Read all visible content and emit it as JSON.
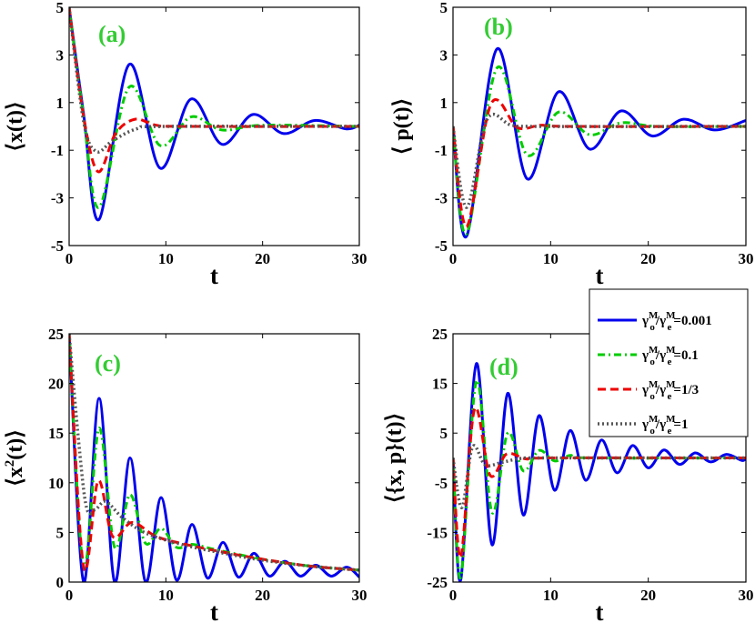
{
  "chart_data": [
    {
      "id": "a",
      "type": "line",
      "panel_label": "(a)",
      "xlabel": "t",
      "ylabel": "⟨x(t)⟩",
      "xlim": [
        0,
        30
      ],
      "ylim": [
        -5,
        5
      ],
      "xticks": [
        0,
        10,
        20,
        30
      ],
      "yticks": [
        -5,
        -3,
        -1,
        1,
        3,
        5
      ],
      "ytick_labels": [
        "-5",
        "-3",
        "-1",
        "1",
        "3",
        "5"
      ],
      "series": [
        {
          "name": "γoM/γeM=0.001",
          "x": [
            0,
            1.5,
            3.1,
            6.2,
            9.4,
            12.6,
            15.8,
            19.0,
            22.2,
            25.4,
            28.6,
            30
          ],
          "y": [
            5,
            0.5,
            -3.9,
            2.6,
            -1.75,
            1.15,
            -0.75,
            0.5,
            -0.3,
            0.25,
            -0.1,
            0.05
          ]
        },
        {
          "name": "γoM/γeM=0.1",
          "x": [
            0,
            1.5,
            3.1,
            6.2,
            9.4,
            12.6,
            15.8,
            20,
            30
          ],
          "y": [
            5,
            0.4,
            -3.4,
            1.65,
            -0.8,
            0.4,
            -0.15,
            0.05,
            0
          ]
        },
        {
          "name": "γoM/γeM=1/3",
          "x": [
            0,
            1.5,
            3.0,
            4.8,
            6.8,
            9,
            12,
            30
          ],
          "y": [
            5,
            0.4,
            -1.9,
            -0.3,
            0.3,
            0.05,
            0,
            0
          ]
        },
        {
          "name": "γoM/γeM=1",
          "x": [
            0,
            1.5,
            2.8,
            4.5,
            7,
            10,
            30
          ],
          "y": [
            5,
            0.2,
            -1.05,
            -0.6,
            -0.1,
            0,
            0
          ]
        }
      ]
    },
    {
      "id": "b",
      "type": "line",
      "panel_label": "(b)",
      "xlabel": "t",
      "ylabel": "⟨ p(t)⟩",
      "xlim": [
        0,
        30
      ],
      "ylim": [
        -5,
        5
      ],
      "xticks": [
        0,
        10,
        20,
        30
      ],
      "yticks": [
        -5,
        -3,
        -1,
        1,
        3,
        5
      ],
      "ytick_labels": [
        "-5",
        "-3",
        "-1",
        "1",
        "3",
        "5"
      ],
      "series": [
        {
          "name": "γoM/γeM=0.001",
          "x": [
            0,
            1.4,
            4.5,
            7.6,
            10.8,
            14.0,
            17.2,
            20.4,
            23.6,
            26.8,
            30
          ],
          "y": [
            0,
            -4.6,
            3.25,
            -2.2,
            1.45,
            -0.95,
            0.65,
            -0.4,
            0.3,
            -0.15,
            0.25
          ]
        },
        {
          "name": "γoM/γeM=0.1",
          "x": [
            0,
            1.4,
            4.5,
            7.6,
            10.8,
            14.0,
            17.2,
            21,
            30
          ],
          "y": [
            0,
            -4.5,
            2.45,
            -1.2,
            0.6,
            -0.35,
            0.15,
            0,
            0
          ]
        },
        {
          "name": "γoM/γeM=1/3",
          "x": [
            0,
            1.4,
            3.9,
            6.6,
            9,
            12,
            30
          ],
          "y": [
            0,
            -4.2,
            0.95,
            -0.05,
            0.05,
            0,
            0
          ]
        },
        {
          "name": "γoM/γeM=1",
          "x": [
            0,
            1.4,
            3.5,
            6,
            9,
            30
          ],
          "y": [
            0,
            -3.4,
            0.3,
            0.05,
            0,
            0
          ]
        }
      ]
    },
    {
      "id": "c",
      "type": "line",
      "panel_label": "(c)",
      "xlabel": "t",
      "ylabel": "⟨x²(t)⟩",
      "xlim": [
        0,
        30
      ],
      "ylim": [
        0,
        25
      ],
      "xticks": [
        0,
        10,
        20,
        30
      ],
      "yticks": [
        0,
        5,
        10,
        15,
        20,
        25
      ],
      "ytick_labels": [
        "0",
        "5",
        "10",
        "15",
        "20",
        "25"
      ],
      "series": [
        {
          "name": "γoM/γeM=0.001",
          "x": [
            0,
            1.5,
            3.1,
            4.7,
            6.3,
            7.9,
            9.5,
            11.1,
            12.7,
            14.3,
            15.9,
            17.5,
            19.1,
            20.7,
            22.3,
            23.9,
            25.5,
            27.1,
            28.7,
            30
          ],
          "y": [
            25,
            0,
            18.5,
            0,
            12.5,
            0,
            8.5,
            0.2,
            5.8,
            0.4,
            4.0,
            0.5,
            2.9,
            0.6,
            2.1,
            0.6,
            1.7,
            0.6,
            1.5,
            0.5
          ]
        },
        {
          "name": "γoM/γeM=0.1",
          "x": [
            0,
            1.5,
            3.1,
            4.7,
            6.3,
            7.9,
            9.5,
            11.1,
            12.7,
            15,
            20,
            25,
            30
          ],
          "y": [
            25,
            1.5,
            15.5,
            3.5,
            8.8,
            3.9,
            5.4,
            3.5,
            3.8,
            3.3,
            2.3,
            1.6,
            1.2
          ]
        },
        {
          "name": "γoM/γeM=1/3",
          "x": [
            0,
            1.5,
            3.0,
            4.5,
            6.5,
            9,
            12,
            16,
            20,
            25,
            30
          ],
          "y": [
            25,
            1.5,
            10.2,
            4.6,
            6.0,
            4.6,
            3.8,
            3.0,
            2.3,
            1.6,
            1.2
          ]
        },
        {
          "name": "γoM/γeM=1",
          "x": [
            0,
            1,
            1.8,
            2.7,
            3.8,
            5.5,
            8,
            12,
            16,
            20,
            25,
            30
          ],
          "y": [
            25,
            14,
            7.5,
            7.3,
            8.1,
            6.5,
            4.9,
            3.7,
            2.9,
            2.2,
            1.6,
            1.2
          ]
        }
      ]
    },
    {
      "id": "d",
      "type": "line",
      "panel_label": "(d)",
      "xlabel": "t",
      "ylabel": "⟨{x, p}(t)⟩",
      "xlim": [
        0,
        30
      ],
      "ylim": [
        -25,
        25
      ],
      "xticks": [
        0,
        10,
        20,
        30
      ],
      "yticks": [
        -25,
        -15,
        -5,
        5,
        15,
        25
      ],
      "ytick_labels": [
        "-25",
        "-15",
        "-5",
        "5",
        "15",
        "25"
      ],
      "series": [
        {
          "name": "γoM/γeM=0.001",
          "x": [
            0,
            0.8,
            2.4,
            4.0,
            5.6,
            7.2,
            8.8,
            10.4,
            12.0,
            13.6,
            15.2,
            16.8,
            18.4,
            20.0,
            21.6,
            23.2,
            24.8,
            26.4,
            28.0,
            29.6,
            30
          ],
          "y": [
            0,
            -24.5,
            19,
            -17.5,
            13,
            -11.5,
            8.5,
            -6.5,
            5.5,
            -4.5,
            3.6,
            -3,
            2.5,
            -2,
            1.6,
            -1.3,
            1,
            -0.8,
            0.7,
            -0.5,
            0
          ]
        },
        {
          "name": "γoM/γeM=0.1",
          "x": [
            0,
            0.8,
            2.4,
            4.0,
            5.6,
            7.2,
            8.8,
            10.4,
            12.0,
            14,
            30
          ],
          "y": [
            0,
            -24,
            15.5,
            -11,
            5,
            -2.6,
            1.5,
            -0.6,
            0.5,
            0,
            0
          ]
        },
        {
          "name": "γoM/γeM=1/3",
          "x": [
            0,
            0.8,
            2.2,
            3.8,
            5.5,
            7.5,
            10,
            30
          ],
          "y": [
            0,
            -20,
            9.8,
            -3.5,
            0.8,
            -0.2,
            0,
            0
          ]
        },
        {
          "name": "γoM/γeM=1",
          "x": [
            0,
            0.9,
            2.0,
            3.3,
            5,
            7,
            10,
            30
          ],
          "y": [
            0,
            -10,
            2.2,
            -1.4,
            -0.9,
            -0.1,
            0,
            0
          ]
        }
      ]
    }
  ],
  "legend": {
    "placement": "top-right of panel (d)",
    "entries": [
      {
        "main": "γ",
        "sup1": "M",
        "sub1": "o",
        "slash": "/γ",
        "sup2": "M",
        "sub2": "e",
        "value": "=0.001",
        "color": "#0000ee",
        "style": "solid"
      },
      {
        "main": "γ",
        "sup1": "M",
        "sub1": "o",
        "slash": "/γ",
        "sup2": "M",
        "sub2": "e",
        "value": "=0.1",
        "color": "#00cc00",
        "style": "dashdot"
      },
      {
        "main": "γ",
        "sup1": "M",
        "sub1": "o",
        "slash": "/γ",
        "sup2": "M",
        "sub2": "e",
        "value": "=1/3",
        "color": "#ee0000",
        "style": "dashed"
      },
      {
        "main": "γ",
        "sup1": "M",
        "sub1": "o",
        "slash": "/γ",
        "sup2": "M",
        "sub2": "e",
        "value": "=1",
        "color": "#555555",
        "style": "dotted"
      }
    ]
  },
  "ylabel_c_parts": {
    "open": "⟨x",
    "sup": "2",
    "close": "(t)⟩"
  }
}
